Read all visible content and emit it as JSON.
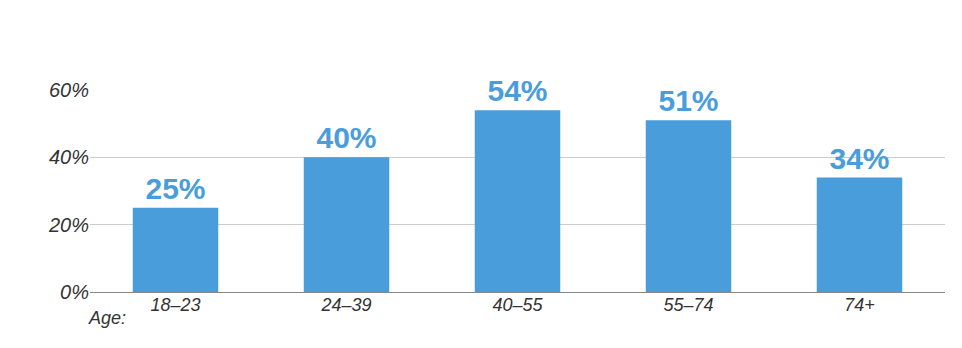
{
  "chart_data": {
    "type": "bar",
    "x_label": "Age:",
    "categories": [
      "18–23",
      "24–39",
      "40–55",
      "55–74",
      "74+"
    ],
    "values": [
      25,
      40,
      54,
      51,
      34
    ],
    "value_labels": [
      "25%",
      "40%",
      "54%",
      "51%",
      "34%"
    ],
    "data_labels": true,
    "color": "#4a9ddb",
    "ylim": [
      0,
      60
    ],
    "yticks": [
      {
        "value": 0,
        "label": "0%"
      },
      {
        "value": 20,
        "label": "20%"
      },
      {
        "value": 40,
        "label": "40%"
      },
      {
        "value": 60,
        "label": "60%"
      }
    ],
    "grid": true
  }
}
